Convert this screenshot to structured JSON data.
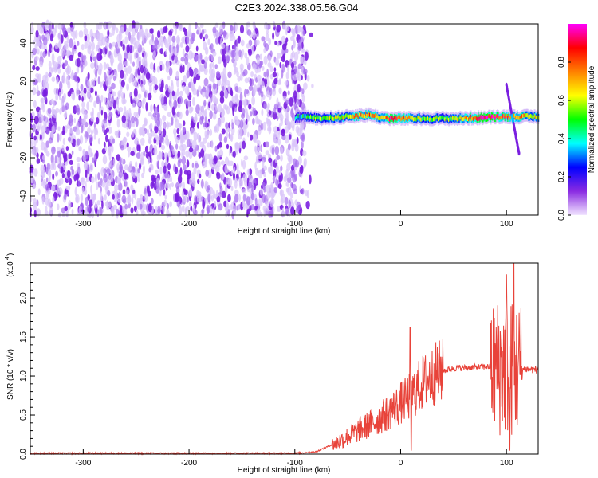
{
  "title": "C2E3.2024.338.05.56.G04",
  "chart_data": [
    {
      "type": "heatmap",
      "xlabel": "Height of straight line (km)",
      "ylabel": "Frequency (Hz)",
      "xlim": [
        -350,
        130
      ],
      "ylim": [
        -50,
        50
      ],
      "xticks": [
        -300,
        -200,
        -100,
        0,
        100
      ],
      "yticks": [
        -40,
        -20,
        0,
        20,
        40
      ],
      "noise_region_x": [
        -350,
        -90
      ],
      "signal_band": [
        {
          "x": -100,
          "f": 1.0,
          "amp": 0.35
        },
        {
          "x": -90,
          "f": 1.5,
          "amp": 0.45
        },
        {
          "x": -80,
          "f": 0.5,
          "amp": 0.55
        },
        {
          "x": -60,
          "f": 1.0,
          "amp": 0.6
        },
        {
          "x": -40,
          "f": 2.0,
          "amp": 0.7
        },
        {
          "x": -30,
          "f": 2.5,
          "amp": 0.75
        },
        {
          "x": -20,
          "f": 1.0,
          "amp": 0.6
        },
        {
          "x": -10,
          "f": 0.5,
          "amp": 0.9
        },
        {
          "x": 0,
          "f": 0.5,
          "amp": 0.8
        },
        {
          "x": 20,
          "f": 0.5,
          "amp": 0.55
        },
        {
          "x": 50,
          "f": 0.5,
          "amp": 0.55
        },
        {
          "x": 80,
          "f": 1.0,
          "amp": 0.95
        },
        {
          "x": 90,
          "f": 1.5,
          "amp": 0.85
        },
        {
          "x": 100,
          "f": 1.5,
          "amp": 0.8
        },
        {
          "x": 115,
          "f": 1.5,
          "amp": 0.7
        },
        {
          "x": 130,
          "f": 1.5,
          "amp": 0.6
        }
      ],
      "colorbar": {
        "label": "Normalized spectral amplitude",
        "ticks": [
          "0.0",
          "0.2",
          "0.4",
          "0.6",
          "0.8"
        ],
        "range": [
          0,
          1
        ],
        "colors": [
          "#f2e6ff",
          "#8a2be2",
          "#0000ff",
          "#00ffff",
          "#00ff00",
          "#ffff00",
          "#ff8000",
          "#ff0000",
          "#ff00ff"
        ]
      }
    },
    {
      "type": "line",
      "xlabel": "Height of straight line (km)",
      "ylabel": "SNR (10 * v/v)",
      "scale_label": "(x10",
      "scale_exp": "4",
      "xlim": [
        -350,
        130
      ],
      "ylim": [
        0,
        2.45
      ],
      "xticks": [
        -300,
        -200,
        -100,
        0,
        100
      ],
      "yticks": [
        "0.0",
        "0.5",
        "1.0",
        "1.5",
        "2.0"
      ],
      "color": "#e8433a",
      "profile": [
        {
          "x": -350,
          "y": 0.01
        },
        {
          "x": -100,
          "y": 0.01
        },
        {
          "x": -80,
          "y": 0.03
        },
        {
          "x": -60,
          "y": 0.15
        },
        {
          "x": -40,
          "y": 0.3
        },
        {
          "x": -20,
          "y": 0.45
        },
        {
          "x": 0,
          "y": 0.65
        },
        {
          "x": 10,
          "y": 0.75
        },
        {
          "x": 20,
          "y": 0.9
        },
        {
          "x": 35,
          "y": 1.05
        },
        {
          "x": 50,
          "y": 1.1
        },
        {
          "x": 85,
          "y": 1.12
        },
        {
          "x": 100,
          "y": 1.1
        },
        {
          "x": 130,
          "y": 1.08
        }
      ],
      "peaks": [
        {
          "x": 9,
          "y": 1.62
        },
        {
          "x": 10,
          "y": 0.05
        },
        {
          "x": 100,
          "y": 2.3
        },
        {
          "x": 103,
          "y": 0.05
        },
        {
          "x": 107,
          "y": 2.45
        }
      ]
    }
  ]
}
